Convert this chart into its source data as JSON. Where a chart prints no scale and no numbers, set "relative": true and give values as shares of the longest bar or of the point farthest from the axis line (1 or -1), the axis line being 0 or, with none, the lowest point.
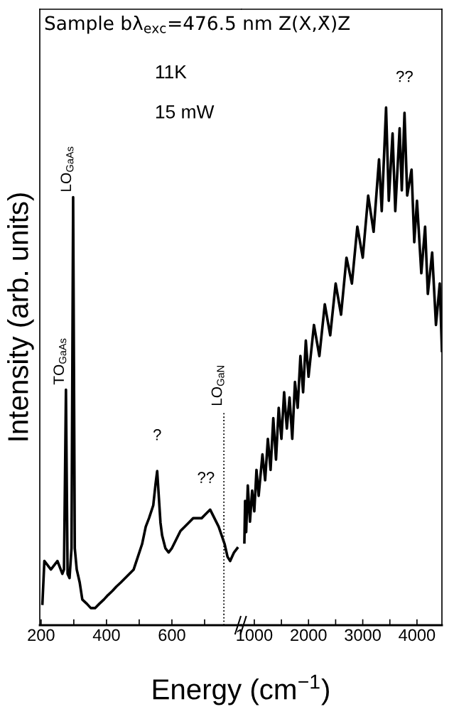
{
  "chart_data": [
    {
      "type": "line",
      "relative": true,
      "title": "Sample bλ$_{exc}$=476.5 nm Z(X,X̄)Z",
      "xlabel": "Energy (cm$^{−1}$)",
      "ylabel": "Intensity (arb. units)",
      "xlim": [
        196,
        813
      ],
      "xticks": [
        200,
        {
          "value": 300,
          "label": null
        },
        400,
        {
          "value": 500,
          "label": null
        },
        600,
        {
          "value": 700,
          "label": null
        }
      ],
      "tick_labels": "x",
      "grid": false,
      "line_style": "solid",
      "marker": "none",
      "series": [
        {
          "color": "#000000",
          "x": [
            204,
            210,
            230,
            250,
            265,
            270,
            276,
            281,
            287,
            293,
            298,
            303,
            309,
            318,
            326,
            340,
            352,
            365,
            378,
            392,
            404,
            418,
            430,
            444,
            457,
            470,
            483,
            496,
            509,
            520,
            530,
            543,
            550,
            555,
            560,
            565,
            570,
            580,
            590,
            600,
            613,
            626,
            639,
            652,
            665,
            678,
            691,
            704,
            717,
            730,
            743,
            752,
            761,
            770,
            778,
            790,
            800
          ],
          "values": [
            0.05,
            0.15,
            0.13,
            0.15,
            0.12,
            0.13,
            0.55,
            0.12,
            0.11,
            0.18,
            1.0,
            0.18,
            0.13,
            0.1,
            0.06,
            0.05,
            0.04,
            0.04,
            0.05,
            0.06,
            0.07,
            0.08,
            0.09,
            0.1,
            0.11,
            0.12,
            0.13,
            0.16,
            0.19,
            0.23,
            0.25,
            0.28,
            0.33,
            0.36,
            0.3,
            0.24,
            0.21,
            0.18,
            0.17,
            0.18,
            0.2,
            0.22,
            0.23,
            0.24,
            0.25,
            0.25,
            0.25,
            0.26,
            0.27,
            0.25,
            0.23,
            0.21,
            0.19,
            0.16,
            0.15,
            0.17,
            0.18
          ]
        }
      ],
      "ref_lines": [
        {
          "axis": "x",
          "value": 759,
          "line_style": "dotted",
          "color": "#000000"
        }
      ],
      "annotations": [
        "11K",
        "15 mW",
        {
          "text": "TO$_{GaAs}$",
          "x": 276,
          "y": 0.55
        },
        {
          "text": "LO$_{GaAs}$",
          "x": 298,
          "y": 1.0
        },
        {
          "text": "?",
          "x": 555,
          "y": 0.36
        },
        {
          "text": "??",
          "x": 704,
          "y": 0.26
        },
        {
          "text": "LO$_{GaN}$",
          "x": 759,
          "y": 0.5
        }
      ]
    },
    {
      "type": "line",
      "relative": true,
      "xlim": [
        765,
        4460
      ],
      "xticks": [
        1000,
        {
          "value": 1500,
          "label": null
        },
        2000,
        {
          "value": 2500,
          "label": null
        },
        3000,
        {
          "value": 3500,
          "label": null
        },
        4000
      ],
      "tick_labels": "x",
      "grid": false,
      "line_style": "solid",
      "marker": "none",
      "series": [
        {
          "color": "#000000",
          "x": [
            817,
            830,
            850,
            880,
            920,
            960,
            1000,
            1040,
            1080,
            1150,
            1200,
            1250,
            1300,
            1350,
            1400,
            1450,
            1500,
            1550,
            1600,
            1650,
            1700,
            1750,
            1800,
            1850,
            1900,
            1950,
            2000,
            2100,
            2200,
            2300,
            2400,
            2500,
            2600,
            2700,
            2800,
            2900,
            3000,
            3100,
            3200,
            3300,
            3350,
            3430,
            3480,
            3550,
            3600,
            3680,
            3720,
            3770,
            3820,
            3900,
            3950,
            4000,
            4080,
            4150,
            4200,
            4280,
            4350,
            4420,
            4460
          ],
          "values": [
            0.16,
            0.24,
            0.18,
            0.27,
            0.2,
            0.26,
            0.22,
            0.3,
            0.25,
            0.33,
            0.28,
            0.36,
            0.3,
            0.4,
            0.32,
            0.42,
            0.36,
            0.45,
            0.38,
            0.44,
            0.36,
            0.47,
            0.42,
            0.52,
            0.45,
            0.55,
            0.48,
            0.58,
            0.52,
            0.62,
            0.56,
            0.66,
            0.6,
            0.71,
            0.66,
            0.77,
            0.71,
            0.83,
            0.76,
            0.9,
            0.8,
            1.0,
            0.82,
            0.95,
            0.8,
            0.96,
            0.84,
            0.99,
            0.83,
            0.88,
            0.74,
            0.82,
            0.68,
            0.77,
            0.64,
            0.72,
            0.58,
            0.66,
            0.53
          ]
        }
      ],
      "annotations": [
        {
          "text": "??",
          "x": 3770,
          "y": 0.99
        }
      ]
    }
  ]
}
